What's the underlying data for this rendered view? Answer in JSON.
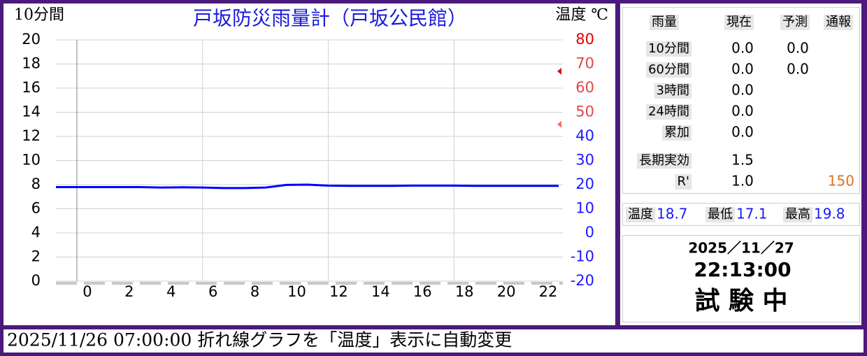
{
  "chart_data": {
    "type": "line",
    "title": "戸坂防災雨量計（戸坂公民館）",
    "y_label": "10分間",
    "y2_label": "温度 ℃",
    "x": [
      -1.5,
      -0.5,
      0.5,
      1.5,
      2.5,
      3.5,
      4.5,
      5.5,
      6.5,
      7.5,
      8.5,
      9.5,
      10.5,
      11.5,
      12.5,
      13.5,
      14.5,
      15.5,
      16.5,
      17.5,
      18.5,
      19.5,
      20.5,
      21.5,
      22.5
    ],
    "series": [
      {
        "name": "温度",
        "color": "#0000ff",
        "axis": "y2",
        "values": [
          19.0,
          19.0,
          19.0,
          19.0,
          19.0,
          18.8,
          18.9,
          18.8,
          18.6,
          18.6,
          18.8,
          19.9,
          20.0,
          19.6,
          19.5,
          19.5,
          19.5,
          19.6,
          19.6,
          19.6,
          19.5,
          19.5,
          19.5,
          19.5,
          19.5
        ]
      }
    ],
    "xlim": [
      -1.5,
      22.7
    ],
    "xticks": [
      0,
      2,
      4,
      6,
      8,
      10,
      12,
      14,
      16,
      18,
      20,
      22
    ],
    "x_gridlines": [
      -0.5,
      5.5,
      11.5,
      17.5
    ],
    "ylim": [
      0,
      20
    ],
    "yticks": [
      0,
      2,
      4,
      6,
      8,
      10,
      12,
      14,
      16,
      18,
      20
    ],
    "y2lim": [
      -20,
      80
    ],
    "y2ticks": [
      -20,
      -10,
      0,
      10,
      20,
      30,
      40,
      50,
      60,
      70,
      80
    ],
    "y2tick_colors": [
      "#1a1aff",
      "#1a1aff",
      "#1a1aff",
      "#1a1aff",
      "#1a1aff",
      "#1a1aff",
      "#1a1aff",
      "#e04848",
      "#e04848",
      "#e04848",
      "#e00000"
    ],
    "markers": [
      {
        "value": 67,
        "color": "#e00000"
      },
      {
        "value": 45,
        "color": "#f07070"
      }
    ],
    "grid": true
  },
  "rain_table": {
    "header": [
      "雨量",
      "現在",
      "予測",
      "通報"
    ],
    "rows": [
      {
        "label": "10分間",
        "current": "0.0",
        "forecast": "0.0"
      },
      {
        "label": "60分間",
        "current": "0.0",
        "forecast": "0.0"
      },
      {
        "label": "3時間",
        "current": "0.0"
      },
      {
        "label": "24時間",
        "current": "0.0"
      },
      {
        "label": "累加",
        "current": "0.0"
      },
      {
        "label": "長期実効",
        "current": "1.5"
      },
      {
        "label": "R'",
        "current": "1.0",
        "report": "150"
      }
    ]
  },
  "temperature": [
    {
      "label": "温度",
      "value": "18.7"
    },
    {
      "label": "最低",
      "value": "17.1"
    },
    {
      "label": "最高",
      "value": "19.8"
    }
  ],
  "clock": {
    "date": "2025／11／27",
    "time": "22:13:00",
    "status": "試 験 中"
  },
  "message": "2025/11/26 07:00:00 折れ線グラフを「温度」表示に自動変更"
}
